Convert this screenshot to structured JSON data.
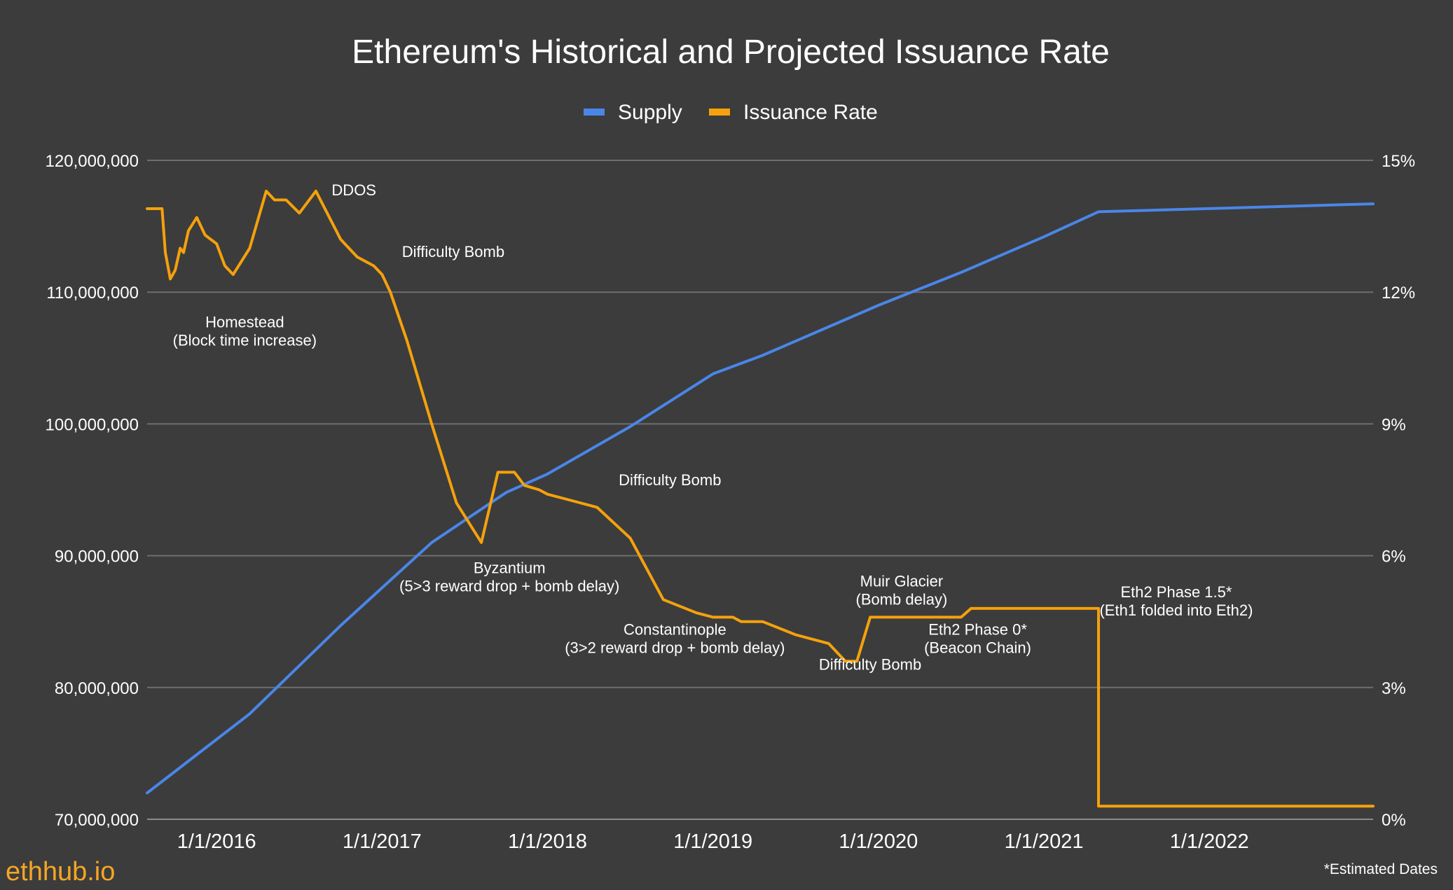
{
  "chart_data": {
    "type": "line",
    "title": "Ethereum's Historical and Projected Issuance Rate",
    "legend": [
      {
        "name": "Supply",
        "color": "#4a86e8"
      },
      {
        "name": "Issuance Rate",
        "color": "#f5a10c"
      }
    ],
    "legend_position": "top-center",
    "grid": true,
    "x_ticks": [
      "1/1/2016",
      "1/1/2017",
      "1/1/2018",
      "1/1/2019",
      "1/1/2020",
      "1/1/2021",
      "1/1/2022"
    ],
    "x_range": [
      2015.58,
      2022.99
    ],
    "y_left": {
      "range": [
        70000000,
        120000000
      ],
      "ticks": [
        "70,000,000",
        "80,000,000",
        "90,000,000",
        "100,000,000",
        "110,000,000",
        "120,000,000"
      ],
      "tick_values": [
        70000000,
        80000000,
        90000000,
        100000000,
        110000000,
        120000000
      ]
    },
    "y_right": {
      "range": [
        0,
        15
      ],
      "ticks": [
        "0%",
        "3%",
        "6%",
        "9%",
        "12%",
        "15%"
      ],
      "tick_values": [
        0,
        3,
        6,
        9,
        12,
        15
      ]
    },
    "series": [
      {
        "name": "Supply",
        "axis": "left",
        "color": "#4a86e8",
        "x": [
          2015.58,
          2016.2,
          2016.75,
          2017.3,
          2017.75,
          2018.0,
          2018.5,
          2019.0,
          2019.3,
          2020.0,
          2020.5,
          2021.0,
          2021.33,
          2022.99
        ],
        "y": [
          72000000,
          78000000,
          84700000,
          91000000,
          94800000,
          96200000,
          99800000,
          103800000,
          105200000,
          109000000,
          111500000,
          114200000,
          116100000,
          116700000
        ]
      },
      {
        "name": "Issuance Rate",
        "axis": "right",
        "color": "#f5a10c",
        "x": [
          2015.58,
          2015.67,
          2015.69,
          2015.72,
          2015.75,
          2015.78,
          2015.8,
          2015.83,
          2015.88,
          2015.93,
          2016.0,
          2016.05,
          2016.1,
          2016.2,
          2016.3,
          2016.35,
          2016.42,
          2016.5,
          2016.6,
          2016.75,
          2016.85,
          2016.95,
          2017.0,
          2017.05,
          2017.15,
          2017.3,
          2017.45,
          2017.6,
          2017.7,
          2017.8,
          2017.86,
          2017.95,
          2018.0,
          2018.1,
          2018.3,
          2018.5,
          2018.7,
          2018.9,
          2019.0,
          2019.08,
          2019.12,
          2019.17,
          2019.3,
          2019.5,
          2019.7,
          2019.8,
          2019.87,
          2019.95,
          2020.08,
          2020.5,
          2020.56,
          2021.33,
          2021.33,
          2022.99
        ],
        "y": [
          13.9,
          13.9,
          12.9,
          12.3,
          12.5,
          13.0,
          12.9,
          13.4,
          13.7,
          13.3,
          13.1,
          12.6,
          12.4,
          13.0,
          14.3,
          14.1,
          14.1,
          13.8,
          14.3,
          13.2,
          12.8,
          12.6,
          12.4,
          12.0,
          10.9,
          9.0,
          7.2,
          6.3,
          7.9,
          7.9,
          7.6,
          7.5,
          7.4,
          7.3,
          7.1,
          6.4,
          5.0,
          4.7,
          4.6,
          4.6,
          4.6,
          4.5,
          4.5,
          4.2,
          4.0,
          3.6,
          3.6,
          4.6,
          4.6,
          4.6,
          4.8,
          4.8,
          0.3,
          0.3
        ]
      }
    ],
    "annotations": [
      {
        "lines": [
          "DDOS"
        ],
        "x": 2016.83,
        "y_pct": 14.2
      },
      {
        "lines": [
          "Difficulty Bomb"
        ],
        "x": 2017.43,
        "y_pct": 12.8
      },
      {
        "lines": [
          "Homestead",
          "(Block time increase)"
        ],
        "x": 2016.17,
        "y_pct": 11.2
      },
      {
        "lines": [
          "Difficulty Bomb"
        ],
        "x": 2018.74,
        "y_pct": 7.6
      },
      {
        "lines": [
          "Byzantium",
          "(5>3 reward drop + bomb delay)"
        ],
        "x": 2017.77,
        "y_pct": 5.6
      },
      {
        "lines": [
          "Muir Glacier",
          "(Bomb delay)"
        ],
        "x": 2020.14,
        "y_pct": 5.3
      },
      {
        "lines": [
          "Eth2 Phase 1.5*",
          "(Eth1 folded into Eth2)"
        ],
        "x": 2021.8,
        "y_pct": 5.05
      },
      {
        "lines": [
          "Constantinople",
          "(3>2 reward drop + bomb delay)"
        ],
        "x": 2018.77,
        "y_pct": 4.2
      },
      {
        "lines": [
          "Eth2 Phase 0*",
          "(Beacon Chain)"
        ],
        "x": 2020.6,
        "y_pct": 4.2
      },
      {
        "lines": [
          "Difficulty Bomb"
        ],
        "x": 2019.95,
        "y_pct": 3.4
      }
    ]
  },
  "footer": {
    "brand": "ethhub.io",
    "note": "*Estimated Dates"
  }
}
